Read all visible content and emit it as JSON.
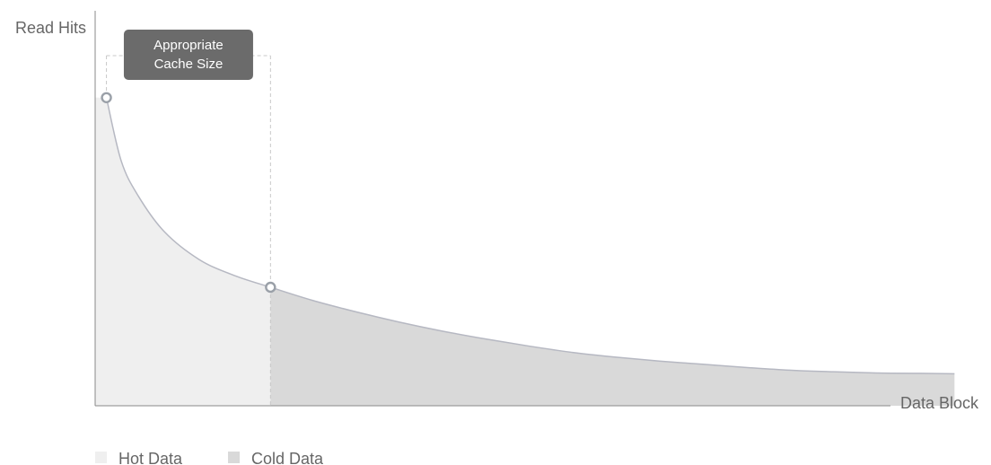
{
  "chart_data": {
    "type": "area",
    "title": "",
    "xlabel": "Data Block",
    "ylabel": "Read Hits",
    "xlim": [
      0,
      100
    ],
    "ylim": [
      0,
      100
    ],
    "grid": false,
    "legend_position": "bottom-left",
    "legend": [
      {
        "label": "Hot Data",
        "color": "#efefef"
      },
      {
        "label": "Cold Data",
        "color": "#d9d9d9"
      }
    ],
    "series": [
      {
        "name": "Read Hits",
        "x": [
          1.3,
          3,
          5,
          8,
          12,
          16,
          20.2,
          25,
          30,
          35,
          40,
          45,
          50,
          55,
          60,
          65,
          70,
          75,
          80,
          85,
          90,
          95,
          99
        ],
        "y": [
          78,
          62,
          53,
          44,
          37,
          33,
          30,
          26.7,
          23.8,
          21.2,
          18.9,
          16.9,
          15.1,
          13.5,
          12.3,
          11.3,
          10.5,
          9.7,
          9.0,
          8.6,
          8.3,
          8.2,
          8.1
        ]
      }
    ],
    "regions": [
      {
        "label": "Hot Data",
        "x_start": 0,
        "x_end": 20.2
      },
      {
        "label": "Cold Data",
        "x_start": 20.2,
        "x_end": 99
      }
    ],
    "markers": [
      {
        "x": 1.3,
        "y": 78
      },
      {
        "x": 20.2,
        "y": 30
      }
    ],
    "annotation": {
      "line1": "Appropriate",
      "line2": "Cache Size",
      "x_start": 1.3,
      "x_end": 20.2
    },
    "colors": {
      "axis": "#8a8a8a",
      "curve": "#b6b8c2",
      "marker_stroke": "#9aa0a8",
      "hot_fill": "#efefef",
      "cold_fill": "#d9d9d9",
      "annotation_bg": "#6b6b6b",
      "dashed": "#c8c8c8"
    }
  }
}
